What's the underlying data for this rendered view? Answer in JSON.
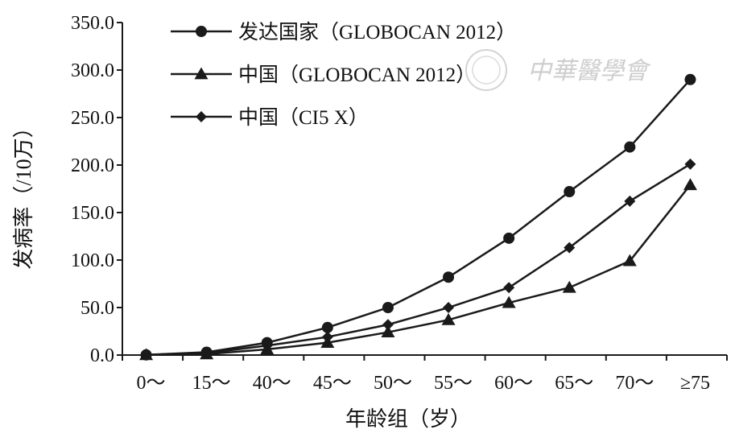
{
  "chart_data": {
    "type": "line",
    "categories": [
      "0～",
      "15～",
      "40～",
      "45～",
      "50～",
      "55～",
      "60～",
      "65～",
      "70～",
      "≥75"
    ],
    "xlabel": "年龄组（岁）",
    "ylabel": "发病率（/10万）",
    "ylim": [
      0,
      350
    ],
    "yticks": [
      "0.0",
      "50.0",
      "100.0",
      "150.0",
      "200.0",
      "250.0",
      "300.0",
      "350.0"
    ],
    "grid": false,
    "legend_position": "top-left",
    "series": [
      {
        "name": "发达国家（GLOBOCAN 2012）",
        "marker": "circle",
        "values": [
          0.2,
          3.0,
          13.0,
          29.0,
          50.0,
          82.0,
          123.0,
          172.0,
          219.0,
          290.0
        ]
      },
      {
        "name": "中国（GLOBOCAN 2012）",
        "marker": "triangle",
        "values": [
          0.1,
          1.0,
          6.0,
          13.0,
          24.0,
          37.0,
          55.0,
          71.0,
          99.0,
          179.0
        ]
      },
      {
        "name": "中国（CI5 X）",
        "marker": "diamond",
        "values": [
          0.2,
          2.0,
          10.0,
          19.0,
          32.0,
          50.0,
          71.0,
          113.0,
          162.0,
          201.0
        ]
      }
    ],
    "line_color": "#1a1a1a"
  },
  "watermark": {
    "text": "中華醫學會"
  }
}
